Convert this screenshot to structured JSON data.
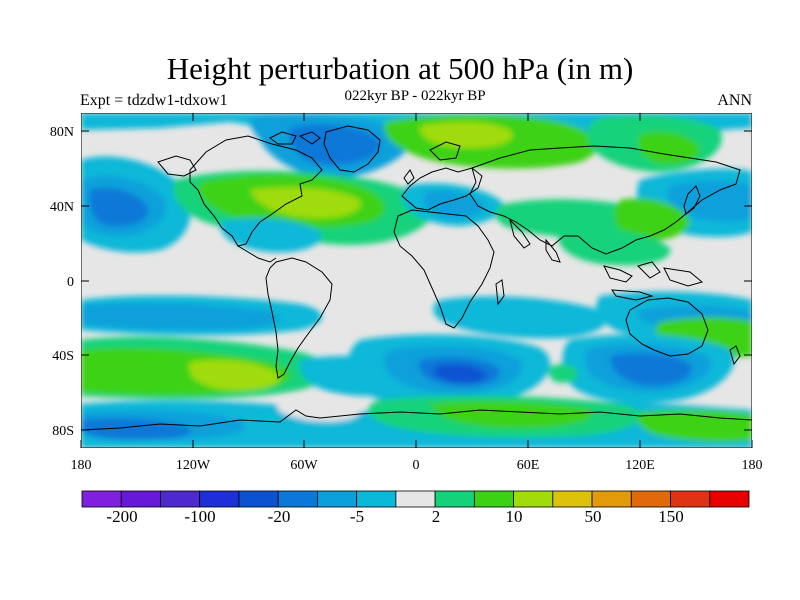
{
  "title": "Height perturbation at 500 hPa (in m)",
  "left_label": "Expt = tdzdw1-tdxow1",
  "center_label": "022kyr BP - 022kyr BP",
  "right_label": "ANN",
  "lat_ticks": [
    "80N",
    "40N",
    "0",
    "40S",
    "80S"
  ],
  "lon_ticks": [
    "180",
    "120W",
    "60W",
    "0",
    "60E",
    "120E",
    "180"
  ],
  "colorbar": {
    "colors": [
      "#7f1fe0",
      "#6619d8",
      "#4d29cf",
      "#1f2fd8",
      "#0a52d2",
      "#0a78d8",
      "#0aa0db",
      "#0ab8d8",
      "#e6e6e6",
      "#14d27a",
      "#3cd214",
      "#a0dc0a",
      "#dcc20a",
      "#e09a0a",
      "#e06a0a",
      "#e03214",
      "#e60000"
    ],
    "labels": [
      "-200",
      "-100",
      "-20",
      "-5",
      "2",
      "10",
      "50",
      "150"
    ]
  }
}
